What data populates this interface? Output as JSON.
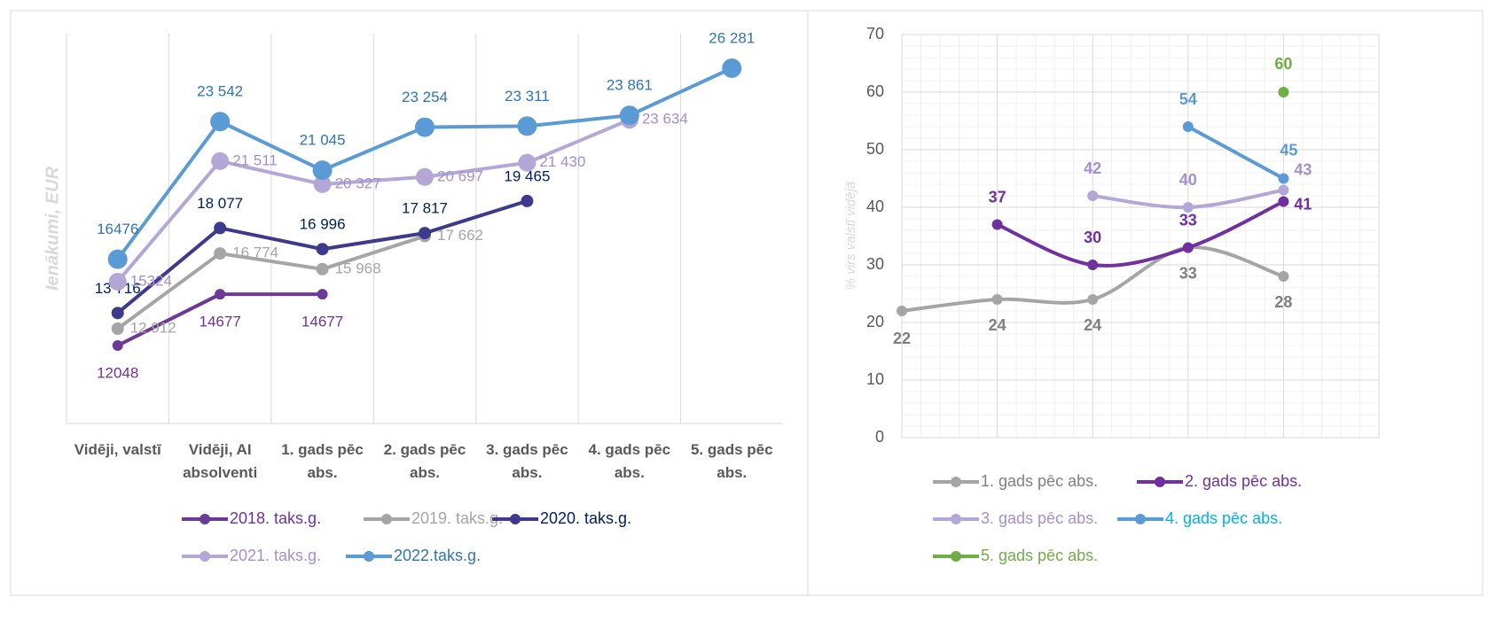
{
  "chart_data": [
    {
      "type": "line",
      "y_label": "Ienākumi, EUR",
      "categories": [
        "Vidēji, valstī",
        "Vidēji, AI absolventi",
        "1. gads pēc abs.",
        "2. gads pēc abs.",
        "3. gads pēc abs.",
        "4. gads pēc abs.",
        "5. gads pēc abs."
      ],
      "series": [
        {
          "name": "2018. taks.g.",
          "color": "#6a3a96",
          "label_color": "#7030a0",
          "values": [
            12048,
            14677,
            14677,
            null,
            null,
            null,
            null
          ]
        },
        {
          "name": "2019. taks.g.",
          "color": "#a5a5a5",
          "label_color": "#a5a5a5",
          "values": [
            12912,
            16774,
            15968,
            17662,
            null,
            null,
            null
          ],
          "value_labels": [
            "12 912",
            "16 774",
            "15 968",
            "17 662",
            null,
            null,
            null
          ]
        },
        {
          "name": "2020. taks.g.",
          "color": "#3d3a8e",
          "label_color": "#002060",
          "values": [
            13716,
            18077,
            16996,
            17817,
            19465,
            null,
            null
          ],
          "value_labels": [
            "13 716",
            "18 077",
            "16 996",
            "17 817",
            "19 465",
            null,
            null
          ]
        },
        {
          "name": "2021. taks.g.",
          "color": "#b4a7d6",
          "label_color": "#a58fd0",
          "values": [
            15324,
            21511,
            20327,
            20697,
            21430,
            23634,
            null
          ],
          "value_labels": [
            "15324",
            "21 511",
            "20 327",
            "20 697",
            "21 430",
            "23 634",
            null
          ]
        },
        {
          "name": "2022.taks.g.",
          "color": "#5b9bd5",
          "label_color": "#2e75b6",
          "values": [
            16476,
            23542,
            21045,
            23254,
            23311,
            23861,
            26281
          ],
          "value_labels": [
            "16476",
            "23 542",
            "21 045",
            "23 254",
            "23 311",
            "23 861",
            "26 281"
          ]
        }
      ],
      "grid": true
    },
    {
      "type": "line",
      "smooth": true,
      "y_label": "% virs valstī vidējā",
      "categories": [
        null,
        null,
        null,
        null,
        null,
        null
      ],
      "ylim": [
        0,
        70
      ],
      "yticks": [
        0,
        10,
        20,
        30,
        40,
        50,
        60,
        70
      ],
      "grid": true,
      "series": [
        {
          "name": "1. gads pēc abs.",
          "color": "#a5a5a5",
          "label_color": "#7f7f7f",
          "values": [
            22,
            24,
            24,
            33,
            28,
            null
          ]
        },
        {
          "name": "2. gads pēc abs.",
          "color": "#7030a0",
          "label_color": "#7030a0",
          "values": [
            null,
            37,
            30,
            33,
            41,
            null
          ]
        },
        {
          "name": "3. gads pēc abs.",
          "color": "#b4a7d6",
          "label_color": "#a58fd0",
          "values": [
            null,
            null,
            42,
            40,
            43,
            null
          ]
        },
        {
          "name": "4. gads pēc abs.",
          "color": "#5b9bd5",
          "label_color": "#00b0f0",
          "values": [
            null,
            null,
            null,
            54,
            45,
            null
          ]
        },
        {
          "name": "5. gads pēc abs.",
          "color": "#70ad47",
          "label_color": "#70ad47",
          "values": [
            null,
            null,
            null,
            null,
            60,
            null
          ]
        }
      ]
    }
  ]
}
